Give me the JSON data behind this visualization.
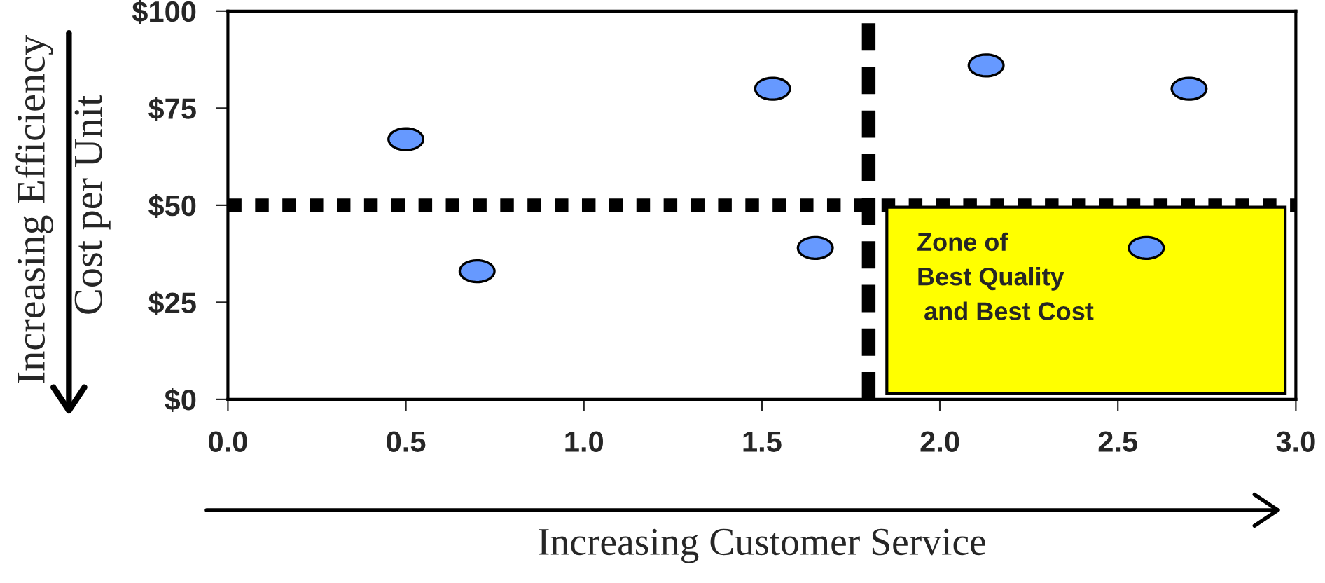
{
  "chart_data": {
    "type": "scatter",
    "xlabel": "Increasing Customer Service",
    "ylabel": "Cost per Unit",
    "x": [
      0.5,
      0.7,
      1.53,
      1.65,
      2.13,
      2.58,
      2.7
    ],
    "series": [
      {
        "color": "#6699ff",
        "values": [
          67,
          33,
          80,
          39,
          86,
          39,
          80
        ]
      }
    ],
    "xlim": [
      0,
      3
    ],
    "ylim": [
      0,
      100
    ],
    "xticks": [
      {
        "value": 0,
        "label": "0.0"
      },
      {
        "value": 0.5,
        "label": "0.5"
      },
      {
        "value": 1,
        "label": "1.0"
      },
      {
        "value": 1.5,
        "label": "1.5"
      },
      {
        "value": 2,
        "label": "2.0"
      },
      {
        "value": 2.5,
        "label": "2.5"
      },
      {
        "value": 3,
        "label": "3.0"
      }
    ],
    "yticks": [
      {
        "value": 0,
        "label": "$0"
      },
      {
        "value": 25,
        "label": "$25"
      },
      {
        "value": 50,
        "label": "$50"
      },
      {
        "value": 75,
        "label": "$75"
      },
      {
        "value": 100,
        "label": "$100"
      }
    ],
    "ref_lines": [
      {
        "axis": "y",
        "value": 50,
        "color": "#000000",
        "line_style": "dotted"
      },
      {
        "axis": "x",
        "value": 1.8,
        "color": "#000000",
        "line_style": "dashed"
      }
    ],
    "annotations": [
      "Increasing Efficiency",
      "Zone of\nBest Quality\n and Best Cost"
    ],
    "grid": false,
    "marker": "circle",
    "legend": false
  }
}
